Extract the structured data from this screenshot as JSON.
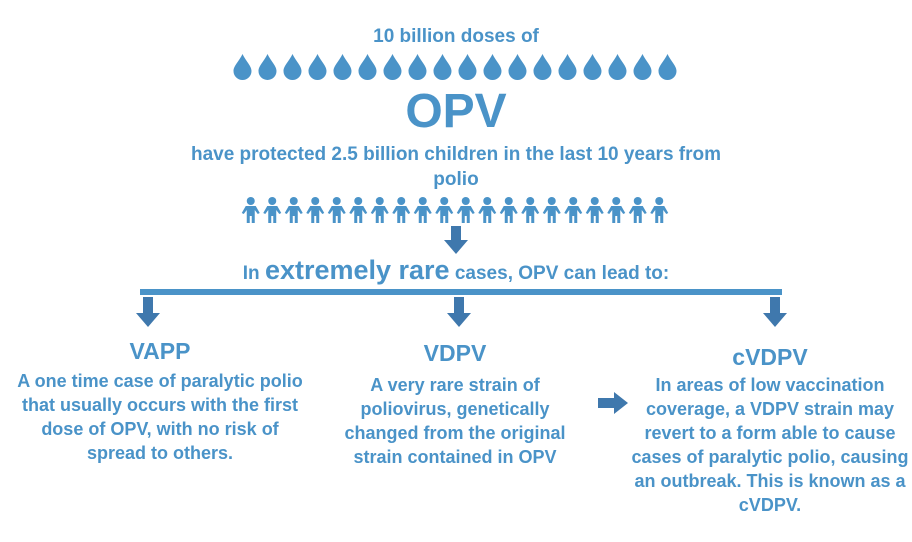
{
  "header": {
    "line1": "10 billion doses of",
    "title": "OPV",
    "protect_text": "have protected 2.5 billion children in the last 10 years from polio"
  },
  "rare_cases": {
    "prefix": "In",
    "emphasis": "extremely rare",
    "suffix": "cases, OPV can lead to:"
  },
  "columns": {
    "vapp": {
      "title": "VAPP",
      "text": "A one time case of paralytic polio  that usually occurs with the first dose of OPV, with no risk of spread to others."
    },
    "vdpv": {
      "title": "VDPV",
      "text": "A very rare strain of poliovirus, genetically changed from the original strain contained in OPV"
    },
    "cvdpv": {
      "title": "cVDPV",
      "text": "In areas of low vaccination coverage, a VDPV strain may revert to a form able to cause cases of paralytic polio, causing an outbreak. This is known as a cVDPV."
    }
  },
  "icons": {
    "drop": "drop-icon",
    "person": "child-icon",
    "arrow": "arrow-icon",
    "drop_count": 18,
    "person_count": 20
  },
  "colors": {
    "primary": "#4a93c8",
    "arrow": "#3f78ad"
  }
}
